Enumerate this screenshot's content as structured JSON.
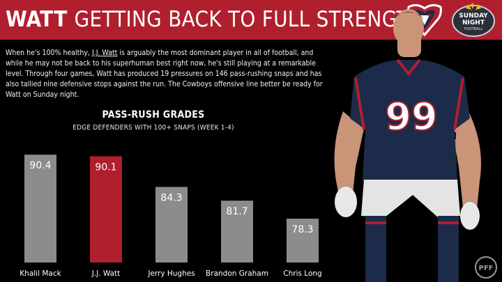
{
  "header": {
    "title_bold": "WATT",
    "title_rest": "GETTING BACK TO FULL STRENGTH"
  },
  "intro": {
    "before": "When he's 100% healthy, ",
    "player": "J.J. Watt",
    "after": " is arguably the most dominant player in all of football, and while he may not be back to his superhuman best right now, he's still playing at a remarkable level. Through four games, Watt has produced 19 pressures on 146 pass-rushing snaps and has also tallied nine defensive stops against the run. The Cowboys offensive line better be ready for Watt on Sunday night."
  },
  "logos": {
    "snf_line1": "SUNDAY",
    "snf_line2": "NIGHT",
    "snf_line3": "FOOTBALL",
    "pff": "PFF"
  },
  "jersey": {
    "number": "99"
  },
  "chart_data": {
    "type": "bar",
    "title": "PASS-RUSH GRADES",
    "subtitle": "EDGE DEFENDERS WITH 100+ SNAPS (WEEK 1-4)",
    "categories": [
      "Khalil Mack",
      "J.J. Watt",
      "Jerry Hughes",
      "Brandon Graham",
      "Chris Long"
    ],
    "values": [
      90.4,
      90.1,
      84.3,
      81.7,
      78.3
    ],
    "highlight": "J.J. Watt",
    "ylim": [
      70,
      92
    ],
    "grid": false,
    "colors": {
      "bar": "#8c8c8c",
      "highlight": "#b01f2e"
    }
  },
  "colors": {
    "header": "#b01f2e",
    "background": "#000000",
    "navy": "#1c2b4a"
  }
}
